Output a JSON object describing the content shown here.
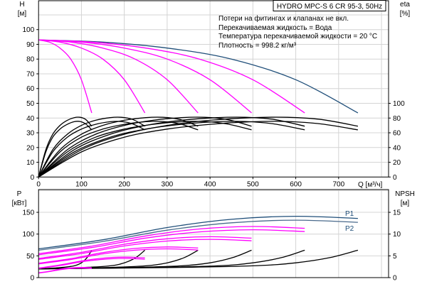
{
  "chart_data": [
    {
      "type": "line",
      "title": "HYDRO MPC-S 6 CR 95-3, 50Hz",
      "notes": [
        "Потери на фитингах и клапанах не вкл.",
        "Перекачиваемая жидкость = Вода",
        "Температура перекачиваемой жидкости = 20 °C",
        "Плотность = 998.2 кг/м³"
      ],
      "xlabel": "Q [м³/ч]",
      "ylabel": [
        "H",
        "[м]"
      ],
      "y2label": [
        "eta",
        "[%]"
      ],
      "xlim": [
        0,
        800
      ],
      "ylim": [
        0,
        110
      ],
      "y2lim": [
        0,
        100
      ],
      "xticks": [
        "0",
        "100",
        "200",
        "300",
        "400",
        "500",
        "600",
        "700"
      ],
      "yticks": [
        "0",
        "10",
        "20",
        "30",
        "40",
        "50",
        "60",
        "70",
        "80",
        "90",
        "100"
      ],
      "y2ticks": [
        "0",
        "20",
        "40",
        "60",
        "80",
        "100"
      ],
      "grid": true,
      "head_series": [
        {
          "color": "#1f4e79",
          "x": [
            0,
            150,
            300,
            450,
            600,
            745
          ],
          "y": [
            93,
            91.5,
            87.5,
            80,
            66,
            43.5
          ]
        },
        {
          "color": "#ff00ff",
          "x": [
            0,
            125,
            250,
            375,
            500,
            621
          ],
          "y": [
            93,
            91.5,
            87.5,
            80,
            66,
            43.5
          ]
        },
        {
          "color": "#ff00ff",
          "x": [
            0,
            100,
            200,
            300,
            400,
            497
          ],
          "y": [
            93,
            91.5,
            87.5,
            80,
            66,
            43.5
          ]
        },
        {
          "color": "#ff00ff",
          "x": [
            0,
            75,
            150,
            225,
            300,
            372
          ],
          "y": [
            93,
            91.5,
            87.5,
            80,
            66,
            43.5
          ]
        },
        {
          "color": "#ff00ff",
          "x": [
            0,
            50,
            100,
            150,
            200,
            248
          ],
          "y": [
            93,
            91.5,
            87.5,
            80,
            66,
            43.5
          ]
        },
        {
          "color": "#ff00ff",
          "x": [
            0,
            25,
            50,
            75,
            100,
            124
          ],
          "y": [
            93,
            91.5,
            87.5,
            80,
            66,
            43.5
          ]
        }
      ],
      "eta_series": [
        {
          "color": "#000000",
          "x": [
            0,
            100,
            200,
            300,
            400,
            500,
            580,
            660,
            745
          ],
          "y": [
            0,
            37,
            58,
            70,
            77,
            80.5,
            81,
            78,
            69
          ]
        },
        {
          "color": "#000000",
          "x": [
            0,
            100,
            200,
            300,
            400,
            500,
            580,
            660,
            745
          ],
          "y": [
            0,
            34,
            54,
            65,
            71.5,
            75,
            75.3,
            72,
            64
          ]
        },
        {
          "color": "#000000",
          "x": [
            0,
            83,
            167,
            250,
            333,
            417,
            483,
            550,
            621
          ],
          "y": [
            0,
            37,
            58,
            70,
            77,
            80.5,
            81,
            78,
            69
          ]
        },
        {
          "color": "#000000",
          "x": [
            0,
            83,
            167,
            250,
            333,
            417,
            483,
            550,
            621
          ],
          "y": [
            0,
            34,
            54,
            65,
            71.5,
            75,
            75.3,
            72,
            64
          ]
        },
        {
          "color": "#000000",
          "x": [
            0,
            67,
            133,
            200,
            267,
            333,
            387,
            440,
            497
          ],
          "y": [
            0,
            37,
            58,
            70,
            77,
            80.5,
            81,
            78,
            69
          ]
        },
        {
          "color": "#000000",
          "x": [
            0,
            67,
            133,
            200,
            267,
            333,
            387,
            440,
            497
          ],
          "y": [
            0,
            34,
            54,
            65,
            71.5,
            75,
            75.3,
            72,
            64
          ]
        },
        {
          "color": "#000000",
          "x": [
            0,
            50,
            100,
            150,
            200,
            250,
            290,
            330,
            372
          ],
          "y": [
            0,
            37,
            58,
            70,
            77,
            80.5,
            81,
            78,
            69
          ]
        },
        {
          "color": "#000000",
          "x": [
            0,
            50,
            100,
            150,
            200,
            250,
            290,
            330,
            372
          ],
          "y": [
            0,
            34,
            54,
            65,
            71.5,
            75,
            75.3,
            72,
            64
          ]
        },
        {
          "color": "#000000",
          "x": [
            0,
            33,
            67,
            100,
            133,
            167,
            193,
            220,
            248
          ],
          "y": [
            0,
            37,
            58,
            70,
            77,
            80.5,
            81,
            78,
            69
          ]
        },
        {
          "color": "#000000",
          "x": [
            0,
            33,
            67,
            100,
            133,
            167,
            193,
            220,
            248
          ],
          "y": [
            0,
            34,
            54,
            65,
            71.5,
            75,
            75.3,
            72,
            64
          ]
        },
        {
          "color": "#000000",
          "x": [
            0,
            17,
            33,
            50,
            67,
            83,
            97,
            110,
            124
          ],
          "y": [
            0,
            37,
            58,
            70,
            77,
            80.5,
            81,
            78,
            69
          ]
        },
        {
          "color": "#000000",
          "x": [
            0,
            17,
            33,
            50,
            67,
            83,
            97,
            110,
            124
          ],
          "y": [
            0,
            34,
            54,
            65,
            71.5,
            75,
            75.3,
            72,
            64
          ]
        }
      ]
    },
    {
      "type": "line",
      "ylabel": [
        "P",
        "[кВт]"
      ],
      "y2label": [
        "NPSH",
        "[м]"
      ],
      "xlim": [
        0,
        800
      ],
      "ylim": [
        0,
        200
      ],
      "y2lim": [
        0,
        20
      ],
      "yticks": [
        "0",
        "50",
        "100",
        "150"
      ],
      "y2ticks": [
        "0",
        "5",
        "10",
        "15"
      ],
      "grid": true,
      "power_series": [
        {
          "name": "P1",
          "color": "#1f4e79",
          "x": [
            0,
            150,
            300,
            450,
            600,
            745
          ],
          "y": [
            66,
            87,
            115,
            134,
            141,
            136
          ]
        },
        {
          "name": "P2",
          "color": "#4a6a8c",
          "x": [
            0,
            150,
            300,
            450,
            600,
            745
          ],
          "y": [
            63,
            83,
            109,
            126,
            132,
            127
          ]
        },
        {
          "color": "#ff00ff",
          "x": [
            0,
            125,
            250,
            375,
            500,
            621
          ],
          "y": [
            55,
            72.5,
            95.8,
            111.7,
            117.5,
            113.3
          ]
        },
        {
          "color": "#ff00ff",
          "x": [
            0,
            125,
            250,
            375,
            500,
            621
          ],
          "y": [
            52.5,
            69.2,
            90.8,
            105,
            110,
            105.8
          ]
        },
        {
          "color": "#ff00ff",
          "x": [
            0,
            100,
            200,
            300,
            400,
            497
          ],
          "y": [
            44,
            58,
            76.7,
            89.3,
            94,
            90.7
          ]
        },
        {
          "color": "#ff00ff",
          "x": [
            0,
            100,
            200,
            300,
            400,
            497
          ],
          "y": [
            42,
            55.3,
            72.7,
            84,
            88,
            84.7
          ]
        },
        {
          "color": "#ff00ff",
          "x": [
            0,
            75,
            150,
            225,
            300,
            372
          ],
          "y": [
            33,
            43.5,
            57.5,
            67,
            70.5,
            68
          ]
        },
        {
          "color": "#ff00ff",
          "x": [
            0,
            75,
            150,
            225,
            300,
            372
          ],
          "y": [
            31.5,
            41.5,
            54.5,
            63,
            66,
            63.5
          ]
        },
        {
          "color": "#ff00ff",
          "x": [
            0,
            50,
            100,
            150,
            200,
            248
          ],
          "y": [
            22,
            29,
            38.3,
            44.7,
            47,
            45.3
          ]
        },
        {
          "color": "#ff00ff",
          "x": [
            0,
            50,
            100,
            150,
            200,
            248
          ],
          "y": [
            21,
            27.7,
            36.3,
            42,
            44,
            42.3
          ]
        },
        {
          "color": "#ff00ff",
          "x": [
            0,
            25,
            50,
            75,
            100,
            124
          ],
          "y": [
            11,
            14.5,
            19.2,
            22.3,
            23.5,
            22.7
          ]
        },
        {
          "color": "#ff00ff",
          "x": [
            0,
            25,
            50,
            75,
            100,
            124
          ],
          "y": [
            10.5,
            13.8,
            18.2,
            21,
            22,
            21.2
          ]
        }
      ],
      "npsh_series": [
        {
          "color": "#000000",
          "x": [
            0,
            300,
            500,
            600,
            680,
            745
          ],
          "y": [
            2.0,
            2.3,
            2.7,
            3.4,
            4.6,
            6.3
          ]
        },
        {
          "color": "#000000",
          "x": [
            0,
            250,
            417,
            500,
            567,
            621
          ],
          "y": [
            2.0,
            2.3,
            2.7,
            3.4,
            4.6,
            6.3
          ]
        },
        {
          "color": "#000000",
          "x": [
            0,
            200,
            333,
            400,
            453,
            497
          ],
          "y": [
            2.0,
            2.3,
            2.7,
            3.4,
            4.6,
            6.3
          ]
        },
        {
          "color": "#000000",
          "x": [
            0,
            150,
            250,
            300,
            340,
            372
          ],
          "y": [
            2.0,
            2.3,
            2.7,
            3.4,
            4.6,
            6.3
          ]
        },
        {
          "color": "#000000",
          "x": [
            0,
            100,
            167,
            200,
            227,
            248
          ],
          "y": [
            2.0,
            2.3,
            2.7,
            3.4,
            4.6,
            6.3
          ]
        },
        {
          "color": "#000000",
          "x": [
            0,
            50,
            83,
            100,
            113,
            124
          ],
          "y": [
            2.0,
            2.3,
            2.7,
            3.4,
            4.6,
            6.3
          ]
        }
      ]
    }
  ]
}
